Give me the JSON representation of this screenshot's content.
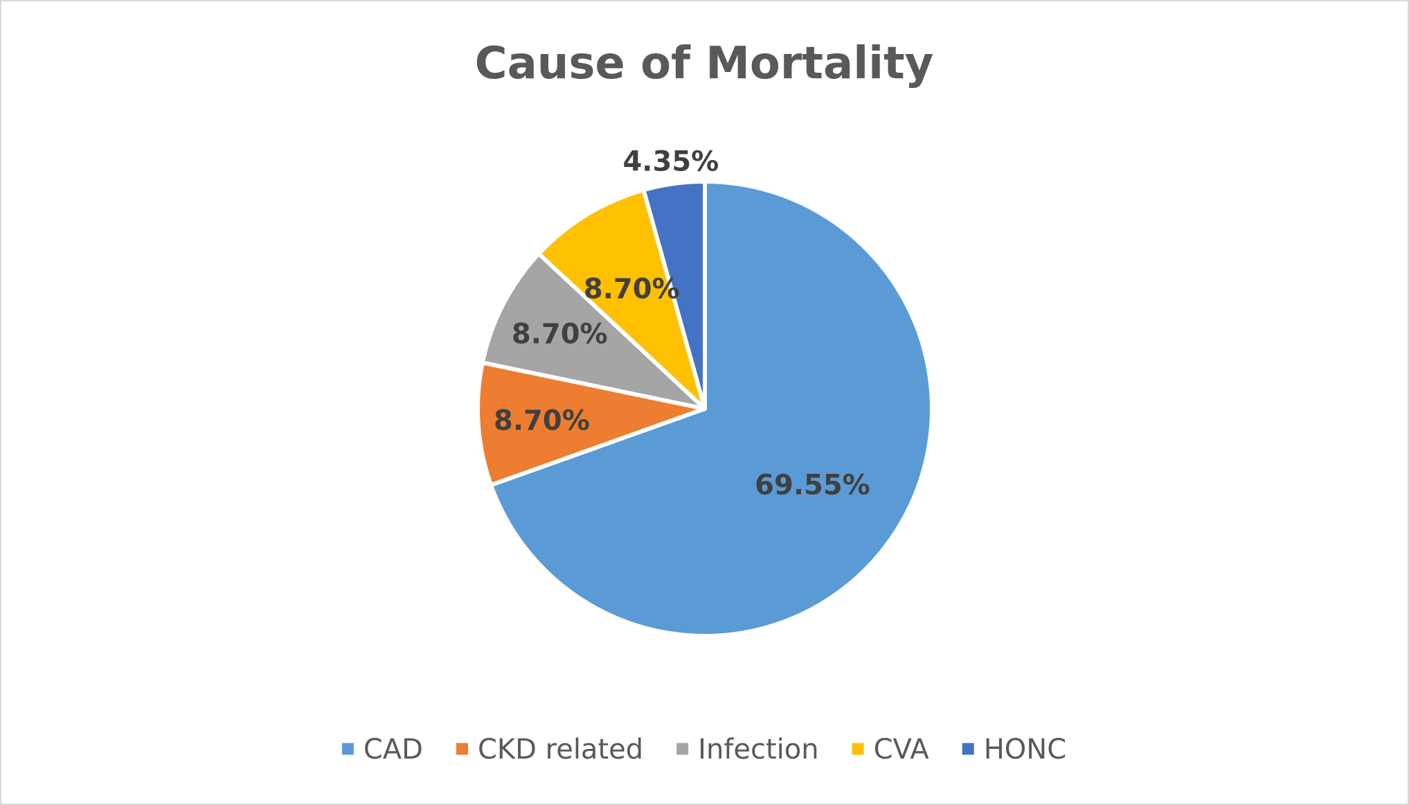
{
  "chart_data": {
    "type": "pie",
    "title": "Cause of Mortality",
    "categories": [
      "CAD",
      "CKD related",
      "Infection",
      "CVA",
      "HONC"
    ],
    "values": [
      69.55,
      8.7,
      8.7,
      8.7,
      4.35
    ],
    "data_labels": [
      "69.55%",
      "8.70%",
      "8.70%",
      "8.70%",
      "4.35%"
    ],
    "colors": [
      "#5b9bd5",
      "#ed7d31",
      "#a5a5a5",
      "#ffc000",
      "#4472c4"
    ],
    "legend_position": "bottom",
    "start_angle": "12 o'clock",
    "direction": "clockwise"
  }
}
